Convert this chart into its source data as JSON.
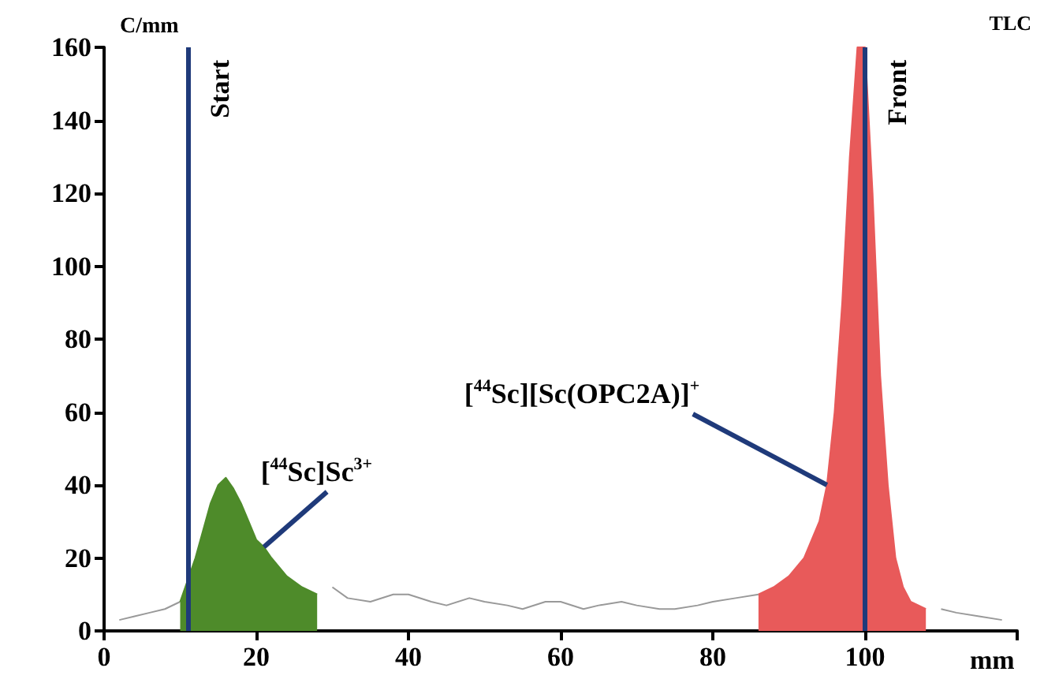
{
  "chart_data": {
    "type": "line",
    "xlabel": "mm",
    "ylabel": "C/mm",
    "xlim": [
      0,
      120
    ],
    "xticks": [
      0,
      20,
      40,
      60,
      80,
      100,
      {
        "value": 120,
        "label": null
      }
    ],
    "ylim": [
      0,
      160
    ],
    "yticks": [
      0,
      20,
      40,
      60,
      80,
      100,
      120,
      140,
      160
    ],
    "grid": false,
    "marker": "none",
    "series": [
      {
        "type": "line",
        "color": "#999999",
        "x": [
          2,
          4,
          6,
          8,
          10,
          11,
          28,
          30,
          32,
          35,
          38,
          40,
          43,
          45,
          48,
          50,
          53,
          55,
          58,
          60,
          63,
          65,
          68,
          70,
          73,
          75,
          78,
          80,
          83,
          86,
          87,
          108,
          110,
          112,
          115,
          118
        ],
        "values": [
          3,
          4,
          5,
          6,
          8,
          null,
          null,
          12,
          9,
          8,
          10,
          10,
          8,
          7,
          9,
          8,
          7,
          6,
          8,
          8,
          6,
          7,
          8,
          7,
          6,
          6,
          7,
          8,
          9,
          10,
          null,
          null,
          6,
          5,
          4,
          3
        ]
      },
      {
        "type": "area",
        "color": "#4e8b2a",
        "x": [
          10,
          12,
          14,
          15,
          16,
          17,
          18,
          19,
          20,
          21,
          22,
          24,
          26,
          28
        ],
        "values": [
          8,
          20,
          35,
          40,
          42,
          39,
          35,
          30,
          25,
          23,
          20,
          15,
          12,
          10
        ]
      },
      {
        "type": "area",
        "color": "#e85a5a",
        "x": [
          86,
          88,
          90,
          92,
          94,
          95,
          96,
          97,
          98,
          99,
          100,
          101,
          102,
          103,
          104,
          105,
          106,
          108
        ],
        "values": [
          10,
          12,
          15,
          20,
          30,
          40,
          60,
          90,
          130,
          160,
          160,
          120,
          70,
          40,
          20,
          12,
          8,
          6
        ]
      }
    ],
    "ref_lines": [
      {
        "axis": "x",
        "value": 11,
        "label": "Start",
        "color": "#1f3a7a"
      },
      {
        "axis": "x",
        "value": 100,
        "label": "Front",
        "color": "#1f3a7a"
      }
    ],
    "annotations": [
      "TLC",
      {
        "text": "[$^{44}$Sc]Sc$^{3+}$",
        "x": 21,
        "y": 23
      },
      {
        "text": "[$^{44}$Sc][Sc(OPC2A)]$^{+}$",
        "x": 95,
        "y": 40
      }
    ]
  }
}
